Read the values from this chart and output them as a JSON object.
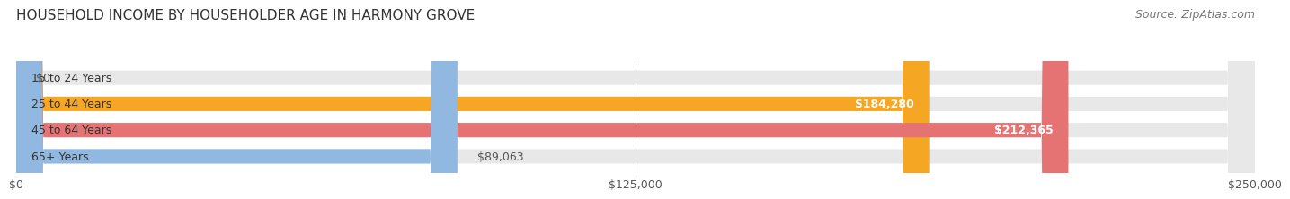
{
  "title": "HOUSEHOLD INCOME BY HOUSEHOLDER AGE IN HARMONY GROVE",
  "source": "Source: ZipAtlas.com",
  "categories": [
    "15 to 24 Years",
    "25 to 44 Years",
    "45 to 64 Years",
    "65+ Years"
  ],
  "values": [
    0,
    184280,
    212365,
    89063
  ],
  "bar_colors": [
    "#f48fb1",
    "#f5a623",
    "#e57373",
    "#90b8e0"
  ],
  "xlim": [
    0,
    250000
  ],
  "xticks": [
    0,
    125000,
    250000
  ],
  "xtick_labels": [
    "$0",
    "$125,000",
    "$250,000"
  ],
  "value_labels": [
    "$0",
    "$184,280",
    "$212,365",
    "$89,063"
  ],
  "label_inside": [
    false,
    true,
    true,
    false
  ],
  "background_color": "#ffffff",
  "bar_height": 0.55,
  "title_fontsize": 11,
  "source_fontsize": 9,
  "label_fontsize": 9,
  "xtick_fontsize": 9
}
